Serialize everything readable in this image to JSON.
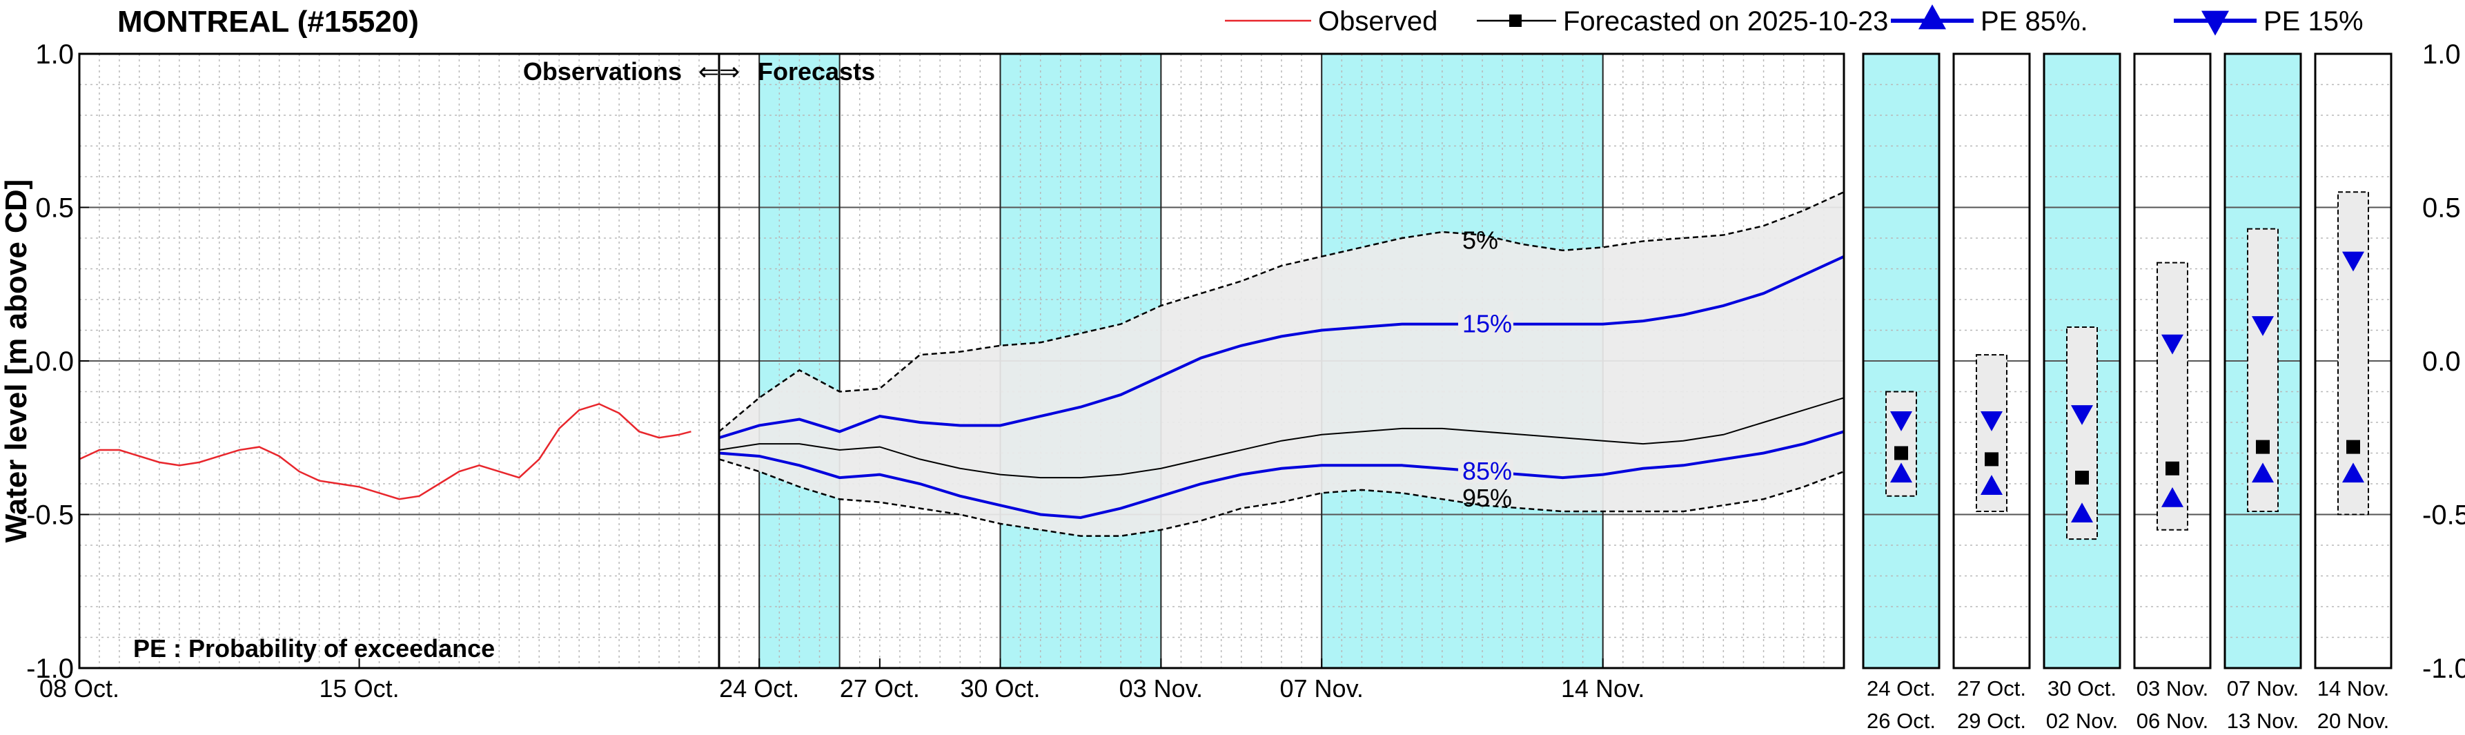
{
  "title": "MONTREAL (#15520)",
  "legend": {
    "observed": "Observed",
    "forecast": "Forecasted on 2025-10-23",
    "pe85": "PE 85%.",
    "pe15": "PE 15%"
  },
  "annotations": {
    "observations": "Observations",
    "forecasts": "Forecasts",
    "arrow": "⇐⇒",
    "pe_note": "PE : Probability of exceedance"
  },
  "colors": {
    "observed": "#e8262c",
    "forecast": "#000000",
    "pe": "#0000dd",
    "band": "#ebebeb",
    "shade": "#b0f4f6"
  },
  "chart_data": {
    "type": "line",
    "ylabel": "Water level [m above CD]",
    "ylim": [
      -1.0,
      1.0
    ],
    "yticks": [
      -1.0,
      -0.5,
      0.0,
      0.5,
      1.0
    ],
    "ytick_labels": [
      "-1.0",
      "-0.5",
      "0.0",
      "0.5",
      "1.0"
    ],
    "grid": true,
    "observed_panel": {
      "x_range_days": [
        0,
        16
      ],
      "xticks": [
        {
          "day": 0,
          "label": "08 Oct."
        },
        {
          "day": 7,
          "label": "15 Oct."
        }
      ],
      "series": {
        "name": "Observed",
        "x": [
          0,
          0.5,
          1,
          1.5,
          2,
          2.5,
          3,
          3.5,
          4,
          4.5,
          5,
          5.5,
          6,
          6.5,
          7,
          7.5,
          8,
          8.5,
          9,
          9.5,
          10,
          10.5,
          11,
          11.5,
          12,
          12.5,
          13,
          13.5,
          14,
          14.5,
          15,
          15.3
        ],
        "y": [
          -0.32,
          -0.29,
          -0.29,
          -0.31,
          -0.33,
          -0.34,
          -0.33,
          -0.31,
          -0.29,
          -0.28,
          -0.31,
          -0.36,
          -0.39,
          -0.4,
          -0.41,
          -0.43,
          -0.45,
          -0.44,
          -0.4,
          -0.36,
          -0.34,
          -0.36,
          -0.38,
          -0.32,
          -0.22,
          -0.16,
          -0.14,
          -0.17,
          -0.23,
          -0.25,
          -0.24,
          -0.23
        ]
      }
    },
    "forecast_panel": {
      "x_range_days": [
        0,
        28
      ],
      "xticks": [
        {
          "day": 1,
          "label": "24 Oct."
        },
        {
          "day": 4,
          "label": "27 Oct."
        },
        {
          "day": 7,
          "label": "30 Oct."
        },
        {
          "day": 11,
          "label": "03 Nov."
        },
        {
          "day": 15,
          "label": "07 Nov."
        },
        {
          "day": 22,
          "label": "14 Nov."
        }
      ],
      "shaded_periods": [
        [
          1,
          3
        ],
        [
          7,
          11
        ],
        [
          15,
          22
        ]
      ],
      "x": [
        0,
        1,
        2,
        3,
        4,
        5,
        6,
        7,
        8,
        9,
        10,
        11,
        12,
        13,
        14,
        15,
        16,
        17,
        18,
        19,
        20,
        21,
        22,
        23,
        24,
        25,
        26,
        27,
        28
      ],
      "series": [
        {
          "name": "5%",
          "style": "dashed",
          "values": [
            -0.23,
            -0.12,
            -0.03,
            -0.1,
            -0.09,
            0.02,
            0.03,
            0.05,
            0.06,
            0.09,
            0.12,
            0.18,
            0.22,
            0.26,
            0.31,
            0.34,
            0.37,
            0.4,
            0.42,
            0.41,
            0.38,
            0.36,
            0.37,
            0.39,
            0.4,
            0.41,
            0.44,
            0.49,
            0.55
          ]
        },
        {
          "name": "15%",
          "style": "blue",
          "values": [
            -0.25,
            -0.21,
            -0.19,
            -0.23,
            -0.18,
            -0.2,
            -0.21,
            -0.21,
            -0.18,
            -0.15,
            -0.11,
            -0.05,
            0.01,
            0.05,
            0.08,
            0.1,
            0.11,
            0.12,
            0.12,
            0.12,
            0.12,
            0.12,
            0.12,
            0.13,
            0.15,
            0.18,
            0.22,
            0.28,
            0.34
          ]
        },
        {
          "name": "Forecast",
          "style": "black",
          "values": [
            -0.29,
            -0.27,
            -0.27,
            -0.29,
            -0.28,
            -0.32,
            -0.35,
            -0.37,
            -0.38,
            -0.38,
            -0.37,
            -0.35,
            -0.32,
            -0.29,
            -0.26,
            -0.24,
            -0.23,
            -0.22,
            -0.22,
            -0.23,
            -0.24,
            -0.25,
            -0.26,
            -0.27,
            -0.26,
            -0.24,
            -0.2,
            -0.16,
            -0.12
          ]
        },
        {
          "name": "85%",
          "style": "blue",
          "values": [
            -0.3,
            -0.31,
            -0.34,
            -0.38,
            -0.37,
            -0.4,
            -0.44,
            -0.47,
            -0.5,
            -0.51,
            -0.48,
            -0.44,
            -0.4,
            -0.37,
            -0.35,
            -0.34,
            -0.34,
            -0.34,
            -0.35,
            -0.36,
            -0.37,
            -0.38,
            -0.37,
            -0.35,
            -0.34,
            -0.32,
            -0.3,
            -0.27,
            -0.23
          ]
        },
        {
          "name": "95%",
          "style": "dashed",
          "values": [
            -0.32,
            -0.36,
            -0.41,
            -0.45,
            -0.46,
            -0.48,
            -0.5,
            -0.53,
            -0.55,
            -0.57,
            -0.57,
            -0.55,
            -0.52,
            -0.48,
            -0.46,
            -0.43,
            -0.42,
            -0.43,
            -0.45,
            -0.47,
            -0.48,
            -0.49,
            -0.49,
            -0.49,
            -0.49,
            -0.47,
            -0.45,
            -0.41,
            -0.36
          ]
        }
      ],
      "line_labels": [
        {
          "series": "5%",
          "day": 18.5,
          "text": "5%"
        },
        {
          "series": "15%",
          "day": 18.5,
          "text": "15%"
        },
        {
          "series": "85%",
          "day": 18.5,
          "text": "85%"
        },
        {
          "series": "95%",
          "day": 18.5,
          "text": "95%"
        }
      ]
    },
    "weekly_boxes": [
      {
        "label1": "24 Oct.",
        "label2": "26 Oct.",
        "shaded": true,
        "low": -0.44,
        "high": -0.1,
        "pe15": -0.19,
        "forecast": -0.3,
        "pe85": -0.37
      },
      {
        "label1": "27 Oct.",
        "label2": "29 Oct.",
        "shaded": false,
        "low": -0.49,
        "high": 0.02,
        "pe15": -0.19,
        "forecast": -0.32,
        "pe85": -0.41
      },
      {
        "label1": "30 Oct.",
        "label2": "02 Nov.",
        "shaded": true,
        "low": -0.58,
        "high": 0.11,
        "pe15": -0.17,
        "forecast": -0.38,
        "pe85": -0.5
      },
      {
        "label1": "03 Nov.",
        "label2": "06 Nov.",
        "shaded": false,
        "low": -0.55,
        "high": 0.32,
        "pe15": 0.06,
        "forecast": -0.35,
        "pe85": -0.45
      },
      {
        "label1": "07 Nov.",
        "label2": "13 Nov.",
        "shaded": true,
        "low": -0.49,
        "high": 0.43,
        "pe15": 0.12,
        "forecast": -0.28,
        "pe85": -0.37
      },
      {
        "label1": "14 Nov.",
        "label2": "20 Nov.",
        "shaded": false,
        "low": -0.5,
        "high": 0.55,
        "pe15": 0.33,
        "forecast": -0.28,
        "pe85": -0.37
      }
    ]
  }
}
